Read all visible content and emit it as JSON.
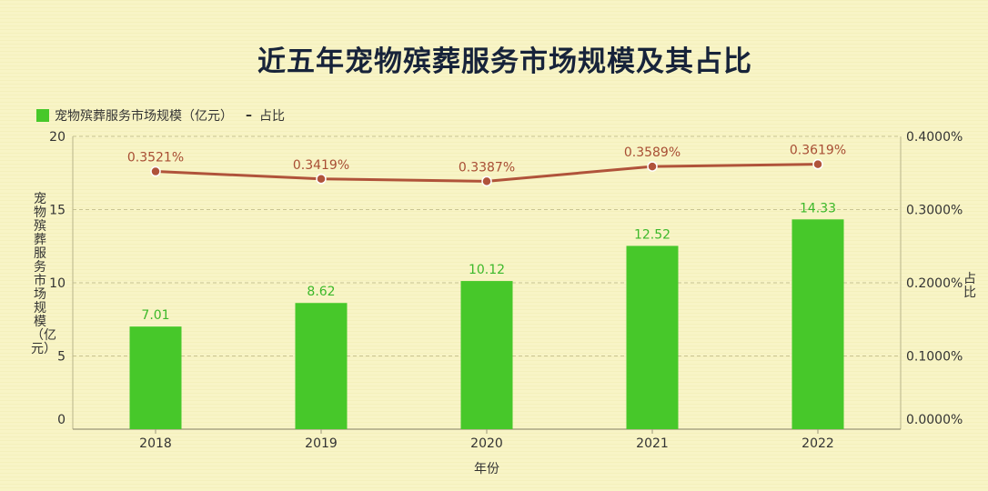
{
  "title": "近五年宠物殡葬服务市场规模及其占比",
  "legend": {
    "bar_label": "宠物殡葬服务市场规模（亿元）",
    "line_label": "占比"
  },
  "chart_data": {
    "type": "bar",
    "title": "近五年宠物殡葬服务市场规模及其占比",
    "xlabel": "年份",
    "ylabel": "宠物殡葬服务市场规模（亿元）",
    "y2label": "占比",
    "categories": [
      "2018",
      "2019",
      "2020",
      "2021",
      "2022"
    ],
    "series": [
      {
        "name": "宠物殡葬服务市场规模（亿元）",
        "type": "bar",
        "axis": "left",
        "color": "#47c82a",
        "values": [
          7.01,
          8.62,
          10.12,
          12.52,
          14.33
        ],
        "labels": [
          "7.01",
          "8.62",
          "10.12",
          "12.52",
          "14.33"
        ]
      },
      {
        "name": "占比",
        "type": "line",
        "axis": "right",
        "color": "#b0533a",
        "values": [
          0.3521,
          0.3419,
          0.3387,
          0.3589,
          0.3619
        ],
        "labels": [
          "0.3521%",
          "0.3419%",
          "0.3387%",
          "0.3589%",
          "0.3619%"
        ]
      }
    ],
    "ylim": [
      0,
      20
    ],
    "yticks": [
      "0",
      "5",
      "10",
      "15",
      "20"
    ],
    "y2lim": [
      0,
      0.4
    ],
    "y2ticks": [
      "0.0000%",
      "0.1000%",
      "0.2000%",
      "0.3000%",
      "0.4000%"
    ],
    "grid": true,
    "legend_position": "top-left"
  }
}
